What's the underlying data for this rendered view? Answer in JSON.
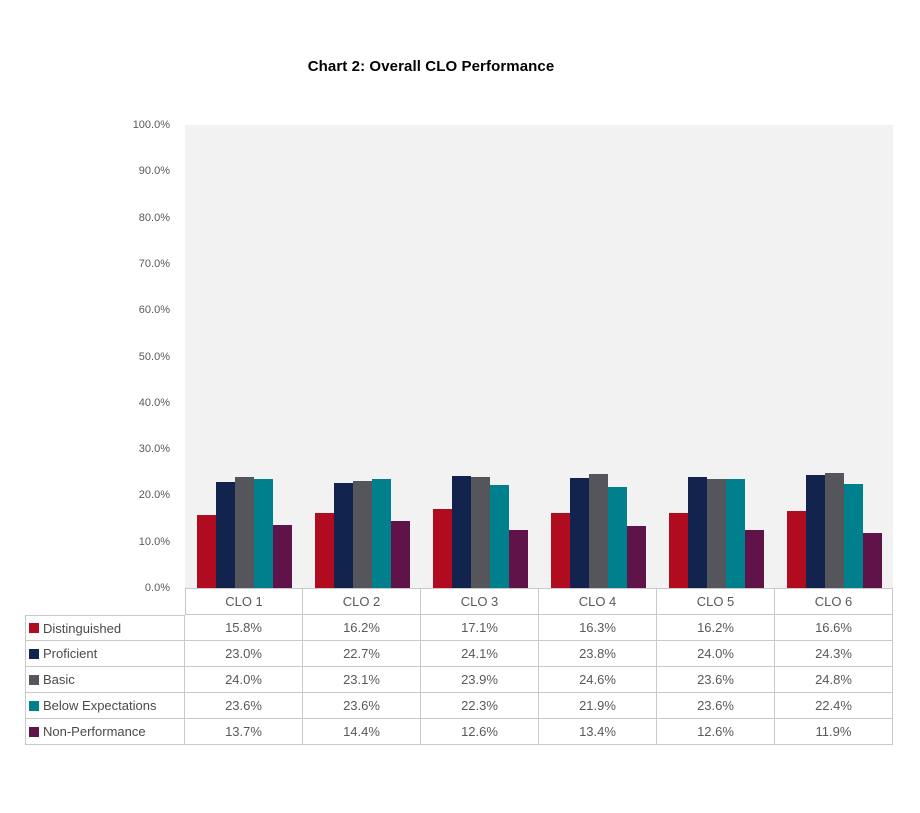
{
  "chart_data": {
    "type": "bar",
    "title": "Chart 2: Overall CLO Performance",
    "categories": [
      "CLO 1",
      "CLO 2",
      "CLO 3",
      "CLO 4",
      "CLO 5",
      "CLO 6"
    ],
    "series": [
      {
        "name": "Distinguished",
        "color": "#B00B1E",
        "values": [
          15.8,
          16.2,
          17.1,
          16.3,
          16.2,
          16.6
        ]
      },
      {
        "name": "Proficient",
        "color": "#12244E",
        "values": [
          23.0,
          22.7,
          24.1,
          23.8,
          24.0,
          24.3
        ]
      },
      {
        "name": "Basic",
        "color": "#54565C",
        "values": [
          24.0,
          23.1,
          23.9,
          24.6,
          23.6,
          24.8
        ]
      },
      {
        "name": "Below Expectations",
        "color": "#00808C",
        "values": [
          23.6,
          23.6,
          22.3,
          21.9,
          23.6,
          22.4
        ]
      },
      {
        "name": "Non-Performance",
        "color": "#601349",
        "values": [
          13.7,
          14.4,
          12.6,
          13.4,
          12.6,
          11.9
        ]
      }
    ],
    "ylabel": "",
    "xlabel": "",
    "ylim": [
      0,
      100
    ],
    "ytick_step": 10,
    "ytick_labels": [
      "100.0%",
      "90.0%",
      "80.0%",
      "70.0%",
      "60.0%",
      "50.0%",
      "40.0%",
      "30.0%",
      "20.0%",
      "10.0%",
      "0.0%"
    ],
    "grid": false,
    "plot_background": "#F2F2F2",
    "legend_position": "table-rows-left",
    "value_format": "percent_1dp"
  }
}
